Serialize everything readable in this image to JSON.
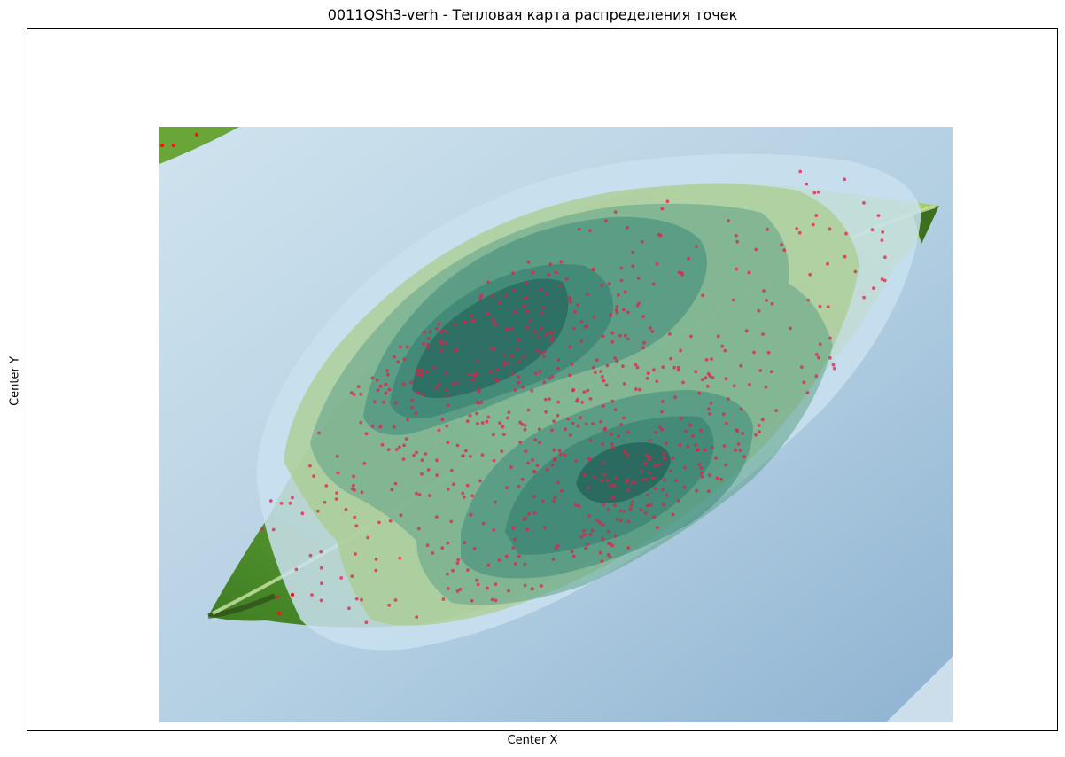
{
  "chart_data": {
    "type": "heatmap",
    "title": "0011QSh3-verh - Тепловая карта распределения точек",
    "xlabel": "Center X",
    "ylabel": "Center Y",
    "background_image": "photo-of-green-leaf",
    "x_ticks": [],
    "y_ticks": [],
    "density_peaks": [
      {
        "name": "upper-left lobe",
        "cx": 0.36,
        "cy": 0.36
      },
      {
        "name": "lower-right lobe",
        "cx": 0.6,
        "cy": 0.59
      }
    ],
    "contour_levels": 7,
    "colors": {
      "backdrop": "#a9c6dc",
      "leaf": "#6fae3a",
      "leaf_dark": "#2f5f24",
      "kde_outer": "#c8e0ee",
      "kde_mid": "#3d8a7a",
      "kde_peak": "#1e5a52",
      "points": "#e0204a"
    }
  }
}
